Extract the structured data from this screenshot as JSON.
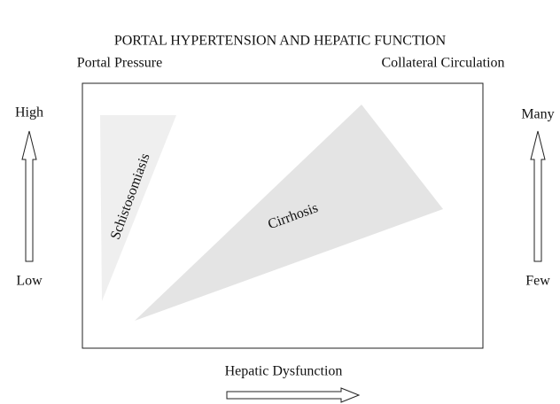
{
  "title": "PORTAL HYPERTENSION AND HEPATIC FUNCTION",
  "left_axis": {
    "label": "Portal Pressure",
    "high": "High",
    "low": "Low"
  },
  "right_axis": {
    "label": "Collateral Circulation",
    "high": "Many",
    "low": "Few"
  },
  "bottom_axis": {
    "label": "Hepatic Dysfunction"
  },
  "regions": [
    {
      "label": "Schistosomiasis"
    },
    {
      "label": "Cirrhosis"
    }
  ]
}
